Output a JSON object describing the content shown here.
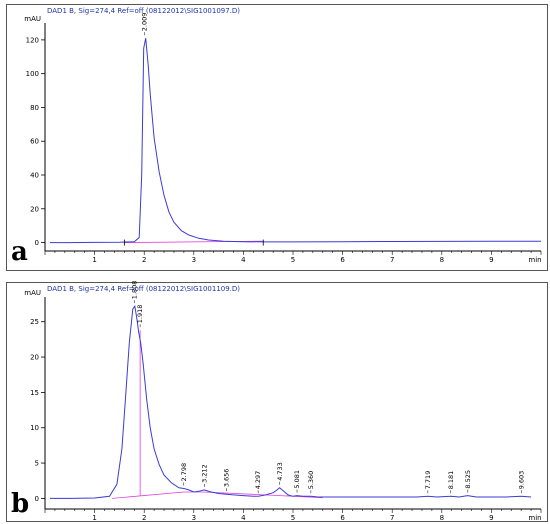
{
  "chart_data": [
    {
      "type": "line",
      "panel_label": "a",
      "title": "DAD1 B, Sig=274,4 Ref=off (08122012\\SIG1001097.D)",
      "ylabel": "mAU",
      "xunit": "min",
      "xlim": [
        0,
        10
      ],
      "ylim": [
        -5,
        130
      ],
      "xticks": [
        1,
        2,
        3,
        4,
        5,
        6,
        7,
        8,
        9
      ],
      "yticks": [
        0,
        20,
        40,
        60,
        80,
        100,
        120
      ],
      "grid": false,
      "colors": {
        "signal": "#3b3bd4",
        "baseline": "#e040e0"
      },
      "series": [
        {
          "x": [
            0.1,
            0.5,
            1.0,
            1.5,
            1.8,
            1.9,
            1.95,
            1.99,
            2.03,
            2.08,
            2.12,
            2.2,
            2.3,
            2.4,
            2.5,
            2.6,
            2.75,
            2.9,
            3.1,
            3.3,
            3.6,
            4.0,
            4.4,
            5.0,
            6.0,
            7.0,
            8.0,
            9.0,
            10.0
          ],
          "y": [
            0.0,
            0.0,
            0.1,
            0.2,
            0.5,
            3.0,
            40.0,
            115.0,
            121.0,
            105.0,
            88.0,
            62.0,
            42.0,
            28.0,
            18.0,
            12.0,
            7.0,
            4.5,
            2.5,
            1.5,
            0.8,
            0.5,
            0.4,
            0.4,
            0.5,
            0.6,
            0.7,
            0.8,
            0.8
          ]
        }
      ],
      "baseline": {
        "x": [
          1.6,
          4.4
        ],
        "y": [
          0.0,
          0.8
        ]
      },
      "peaks": [
        {
          "x": 2.009,
          "label": "2.009",
          "y": 121.0
        }
      ],
      "markers_x": [
        1.6,
        4.4
      ]
    },
    {
      "type": "line",
      "panel_label": "b",
      "title": "DAD1 B, Sig=274,4 Ref=off (08122012\\SIG1001109.D)",
      "ylabel": "mAU",
      "xunit": "min",
      "xlim": [
        0,
        10
      ],
      "ylim": [
        -1.5,
        28.5
      ],
      "xticks": [
        1,
        2,
        3,
        4,
        5,
        6,
        7,
        8,
        9
      ],
      "yticks": [
        0,
        5,
        10,
        15,
        20,
        25
      ],
      "grid": false,
      "colors": {
        "signal": "#3b3bd4",
        "baseline": "#e040e0"
      },
      "series": [
        {
          "x": [
            0.1,
            0.5,
            1.0,
            1.3,
            1.45,
            1.55,
            1.62,
            1.7,
            1.77,
            1.81,
            1.85,
            1.89,
            1.93,
            1.98,
            2.05,
            2.12,
            2.2,
            2.3,
            2.4,
            2.55,
            2.7,
            2.8,
            2.9,
            3.0,
            3.1,
            3.21,
            3.35,
            3.5,
            3.66,
            3.8,
            4.0,
            4.2,
            4.3,
            4.45,
            4.6,
            4.68,
            4.73,
            4.8,
            4.9,
            5.0,
            5.08,
            5.2,
            5.36,
            5.5,
            6.0,
            6.5,
            7.0,
            7.5,
            7.72,
            7.9,
            8.18,
            8.35,
            8.52,
            8.7,
            9.0,
            9.3,
            9.6,
            9.8
          ],
          "y": [
            0.0,
            0.0,
            0.05,
            0.3,
            2.0,
            7.0,
            14.0,
            22.0,
            26.8,
            27.2,
            25.5,
            23.5,
            22.0,
            19.0,
            14.0,
            10.0,
            7.0,
            4.8,
            3.3,
            2.2,
            1.5,
            1.4,
            1.2,
            0.9,
            1.0,
            1.2,
            0.9,
            0.7,
            0.6,
            0.5,
            0.4,
            0.3,
            0.3,
            0.5,
            0.8,
            1.2,
            1.5,
            1.1,
            0.5,
            0.3,
            0.4,
            0.3,
            0.3,
            0.2,
            0.2,
            0.2,
            0.2,
            0.2,
            0.3,
            0.2,
            0.3,
            0.2,
            0.4,
            0.2,
            0.2,
            0.2,
            0.3,
            0.2
          ]
        }
      ],
      "baseline": {
        "x": [
          1.35,
          2.8,
          3.2,
          5.6
        ],
        "y": [
          0.0,
          0.9,
          0.9,
          0.1
        ]
      },
      "peaks": [
        {
          "x": 1.808,
          "label": "1.808",
          "y": 27.2
        },
        {
          "x": 1.918,
          "label": "1.918",
          "y": 23.8
        },
        {
          "x": 2.798,
          "label": "2.798",
          "y": 1.4
        },
        {
          "x": 3.212,
          "label": "3.212",
          "y": 1.2
        },
        {
          "x": 3.656,
          "label": "3.656",
          "y": 0.6
        },
        {
          "x": 4.297,
          "label": "4.297",
          "y": 0.3
        },
        {
          "x": 4.733,
          "label": "4.733",
          "y": 1.5
        },
        {
          "x": 5.081,
          "label": "5.081",
          "y": 0.4
        },
        {
          "x": 5.36,
          "label": "5.360",
          "y": 0.3
        },
        {
          "x": 7.719,
          "label": "7.719",
          "y": 0.3
        },
        {
          "x": 8.181,
          "label": "8.181",
          "y": 0.3
        },
        {
          "x": 8.525,
          "label": "8.525",
          "y": 0.4
        },
        {
          "x": 9.603,
          "label": "9.603",
          "y": 0.3
        }
      ],
      "drop_line_x": 1.918
    }
  ]
}
